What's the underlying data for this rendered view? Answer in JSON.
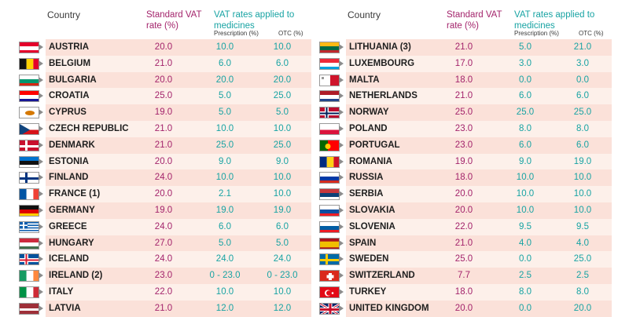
{
  "header": {
    "country": "Country",
    "standard_vat": "Standard VAT rate (%)",
    "vat_medicines": "VAT rates applied to medicines",
    "prescription": "Prescription (%)",
    "otc": "OTC (%)"
  },
  "left_rows": [
    {
      "country": "AUSTRIA",
      "standard": "20.0",
      "prescription": "10.0",
      "otc": "10.0",
      "flag_icon": "austria-flag-icon",
      "flag": {
        "type": "h",
        "colors": [
          "#e4002b",
          "#ffffff",
          "#e4002b"
        ]
      }
    },
    {
      "country": "BELGIUM",
      "standard": "21.0",
      "prescription": "6.0",
      "otc": "6.0",
      "flag_icon": "belgium-flag-icon",
      "flag": {
        "type": "v",
        "colors": [
          "#111111",
          "#ffd100",
          "#e4002b"
        ]
      }
    },
    {
      "country": "BULGARIA",
      "standard": "20.0",
      "prescription": "20.0",
      "otc": "20.0",
      "flag_icon": "bulgaria-flag-icon",
      "flag": {
        "type": "h",
        "colors": [
          "#ffffff",
          "#00966e",
          "#d62612"
        ]
      }
    },
    {
      "country": "CROATIA",
      "standard": "25.0",
      "prescription": "5.0",
      "otc": "25.0",
      "flag_icon": "croatia-flag-icon",
      "flag": {
        "type": "h",
        "colors": [
          "#ff0000",
          "#ffffff",
          "#171796"
        ]
      }
    },
    {
      "country": "CYPRUS",
      "standard": "19.0",
      "prescription": "5.0",
      "otc": "5.0",
      "flag_icon": "cyprus-flag-icon",
      "flag": {
        "type": "cyprus",
        "colors": [
          "#ffffff",
          "#d57800"
        ]
      }
    },
    {
      "country": "CZECH REPUBLIC",
      "standard": "21.0",
      "prescription": "10.0",
      "otc": "10.0",
      "flag_icon": "czech-republic-flag-icon",
      "flag": {
        "type": "czech",
        "colors": [
          "#ffffff",
          "#d7141a",
          "#11457e"
        ]
      }
    },
    {
      "country": "DENMARK",
      "standard": "21.0",
      "prescription": "25.0",
      "otc": "25.0",
      "flag_icon": "denmark-flag-icon",
      "flag": {
        "type": "cross",
        "colors": [
          "#c8102e",
          "#ffffff"
        ]
      }
    },
    {
      "country": "ESTONIA",
      "standard": "20.0",
      "prescription": "9.0",
      "otc": "9.0",
      "flag_icon": "estonia-flag-icon",
      "flag": {
        "type": "h",
        "colors": [
          "#0072ce",
          "#111111",
          "#ffffff"
        ]
      }
    },
    {
      "country": "FINLAND",
      "standard": "24.0",
      "prescription": "10.0",
      "otc": "10.0",
      "flag_icon": "finland-flag-icon",
      "flag": {
        "type": "cross",
        "colors": [
          "#ffffff",
          "#003580"
        ]
      }
    },
    {
      "country": "FRANCE (1)",
      "standard": "20.0",
      "prescription": "2.1",
      "otc": "10.0",
      "flag_icon": "france-flag-icon",
      "flag": {
        "type": "v",
        "colors": [
          "#0055a4",
          "#ffffff",
          "#ef4135"
        ]
      }
    },
    {
      "country": "GERMANY",
      "standard": "19.0",
      "prescription": "19.0",
      "otc": "19.0",
      "flag_icon": "germany-flag-icon",
      "flag": {
        "type": "h",
        "colors": [
          "#111111",
          "#dd0000",
          "#ffce00"
        ]
      }
    },
    {
      "country": "GREECE",
      "standard": "24.0",
      "prescription": "6.0",
      "otc": "6.0",
      "flag_icon": "greece-flag-icon",
      "flag": {
        "type": "greece",
        "colors": [
          "#0d5eaf",
          "#ffffff"
        ]
      }
    },
    {
      "country": "HUNGARY",
      "standard": "27.0",
      "prescription": "5.0",
      "otc": "5.0",
      "flag_icon": "hungary-flag-icon",
      "flag": {
        "type": "h",
        "colors": [
          "#cd2a3e",
          "#ffffff",
          "#436f4d"
        ]
      }
    },
    {
      "country": "ICELAND",
      "standard": "24.0",
      "prescription": "24.0",
      "otc": "24.0",
      "flag_icon": "iceland-flag-icon",
      "flag": {
        "type": "cross2",
        "colors": [
          "#02529c",
          "#ffffff",
          "#dc1e35"
        ]
      }
    },
    {
      "country": "IRELAND (2)",
      "standard": "23.0",
      "prescription": "0 - 23.0",
      "otc": "0 - 23.0",
      "flag_icon": "ireland-flag-icon",
      "flag": {
        "type": "v",
        "colors": [
          "#169b62",
          "#ffffff",
          "#ff883e"
        ]
      }
    },
    {
      "country": "ITALY",
      "standard": "22.0",
      "prescription": "10.0",
      "otc": "10.0",
      "flag_icon": "italy-flag-icon",
      "flag": {
        "type": "v",
        "colors": [
          "#009246",
          "#ffffff",
          "#ce2b37"
        ]
      }
    },
    {
      "country": "LATVIA",
      "standard": "21.0",
      "prescription": "12.0",
      "otc": "12.0",
      "flag_icon": "latvia-flag-icon",
      "flag": {
        "type": "h3",
        "colors": [
          "#9e3039",
          "#ffffff",
          "#9e3039"
        ]
      }
    }
  ],
  "right_rows": [
    {
      "country": "LITHUANIA (3)",
      "standard": "21.0",
      "prescription": "5.0",
      "otc": "21.0",
      "flag_icon": "lithuania-flag-icon",
      "flag": {
        "type": "h",
        "colors": [
          "#fdb913",
          "#006a44",
          "#c1272d"
        ]
      }
    },
    {
      "country": "LUXEMBOURG",
      "standard": "17.0",
      "prescription": "3.0",
      "otc": "3.0",
      "flag_icon": "luxembourg-flag-icon",
      "flag": {
        "type": "h",
        "colors": [
          "#ed2939",
          "#ffffff",
          "#00a1de"
        ]
      }
    },
    {
      "country": "MALTA",
      "standard": "18.0",
      "prescription": "0.0",
      "otc": "0.0",
      "flag_icon": "malta-flag-icon",
      "flag": {
        "type": "v2",
        "colors": [
          "#ffffff",
          "#cf142b"
        ]
      }
    },
    {
      "country": "NETHERLANDS",
      "standard": "21.0",
      "prescription": "6.0",
      "otc": "6.0",
      "flag_icon": "netherlands-flag-icon",
      "flag": {
        "type": "h",
        "colors": [
          "#ae1c28",
          "#ffffff",
          "#21468b"
        ]
      }
    },
    {
      "country": "NORWAY",
      "standard": "25.0",
      "prescription": "25.0",
      "otc": "25.0",
      "flag_icon": "norway-flag-icon",
      "flag": {
        "type": "cross2",
        "colors": [
          "#ba0c2f",
          "#ffffff",
          "#00205b"
        ]
      }
    },
    {
      "country": "POLAND",
      "standard": "23.0",
      "prescription": "8.0",
      "otc": "8.0",
      "flag_icon": "poland-flag-icon",
      "flag": {
        "type": "h2",
        "colors": [
          "#ffffff",
          "#dc143c"
        ]
      }
    },
    {
      "country": "PORTUGAL",
      "standard": "23.0",
      "prescription": "6.0",
      "otc": "6.0",
      "flag_icon": "portugal-flag-icon",
      "flag": {
        "type": "portugal",
        "colors": [
          "#006600",
          "#ff0000",
          "#ffcc00"
        ]
      }
    },
    {
      "country": "ROMANIA",
      "standard": "19.0",
      "prescription": "9.0",
      "otc": "19.0",
      "flag_icon": "romania-flag-icon",
      "flag": {
        "type": "v",
        "colors": [
          "#002b7f",
          "#fcd116",
          "#ce1126"
        ]
      }
    },
    {
      "country": "RUSSIA",
      "standard": "18.0",
      "prescription": "10.0",
      "otc": "10.0",
      "flag_icon": "russia-flag-icon",
      "flag": {
        "type": "h",
        "colors": [
          "#ffffff",
          "#0039a6",
          "#d52b1e"
        ]
      }
    },
    {
      "country": "SERBIA",
      "standard": "20.0",
      "prescription": "10.0",
      "otc": "10.0",
      "flag_icon": "serbia-flag-icon",
      "flag": {
        "type": "h",
        "colors": [
          "#c6363c",
          "#0c4076",
          "#ffffff"
        ]
      }
    },
    {
      "country": "SLOVAKIA",
      "standard": "20.0",
      "prescription": "10.0",
      "otc": "10.0",
      "flag_icon": "slovakia-flag-icon",
      "flag": {
        "type": "h",
        "colors": [
          "#ffffff",
          "#0b4ea2",
          "#ee1c25"
        ]
      }
    },
    {
      "country": "SLOVENIA",
      "standard": "22.0",
      "prescription": "9.5",
      "otc": "9.5",
      "flag_icon": "slovenia-flag-icon",
      "flag": {
        "type": "h",
        "colors": [
          "#ffffff",
          "#005da4",
          "#ed1c24"
        ]
      }
    },
    {
      "country": "SPAIN",
      "standard": "21.0",
      "prescription": "4.0",
      "otc": "4.0",
      "flag_icon": "spain-flag-icon",
      "flag": {
        "type": "spain",
        "colors": [
          "#aa151b",
          "#f1bf00"
        ]
      }
    },
    {
      "country": "SWEDEN",
      "standard": "25.0",
      "prescription": "0.0",
      "otc": "25.0",
      "flag_icon": "sweden-flag-icon",
      "flag": {
        "type": "cross",
        "colors": [
          "#006aa7",
          "#fecc00"
        ]
      }
    },
    {
      "country": "SWITZERLAND",
      "standard": "7.7",
      "prescription": "2.5",
      "otc": "2.5",
      "flag_icon": "switzerland-flag-icon",
      "flag": {
        "type": "swiss",
        "colors": [
          "#da291c",
          "#ffffff"
        ]
      }
    },
    {
      "country": "TURKEY",
      "standard": "18.0",
      "prescription": "8.0",
      "otc": "8.0",
      "flag_icon": "turkey-flag-icon",
      "flag": {
        "type": "turkey",
        "colors": [
          "#e30a17",
          "#ffffff"
        ]
      }
    },
    {
      "country": "UNITED KINGDOM",
      "standard": "20.0",
      "prescription": "0.0",
      "otc": "20.0",
      "flag_icon": "united-kingdom-flag-icon",
      "flag": {
        "type": "uk",
        "colors": [
          "#012169",
          "#ffffff",
          "#c8102e"
        ]
      }
    }
  ]
}
